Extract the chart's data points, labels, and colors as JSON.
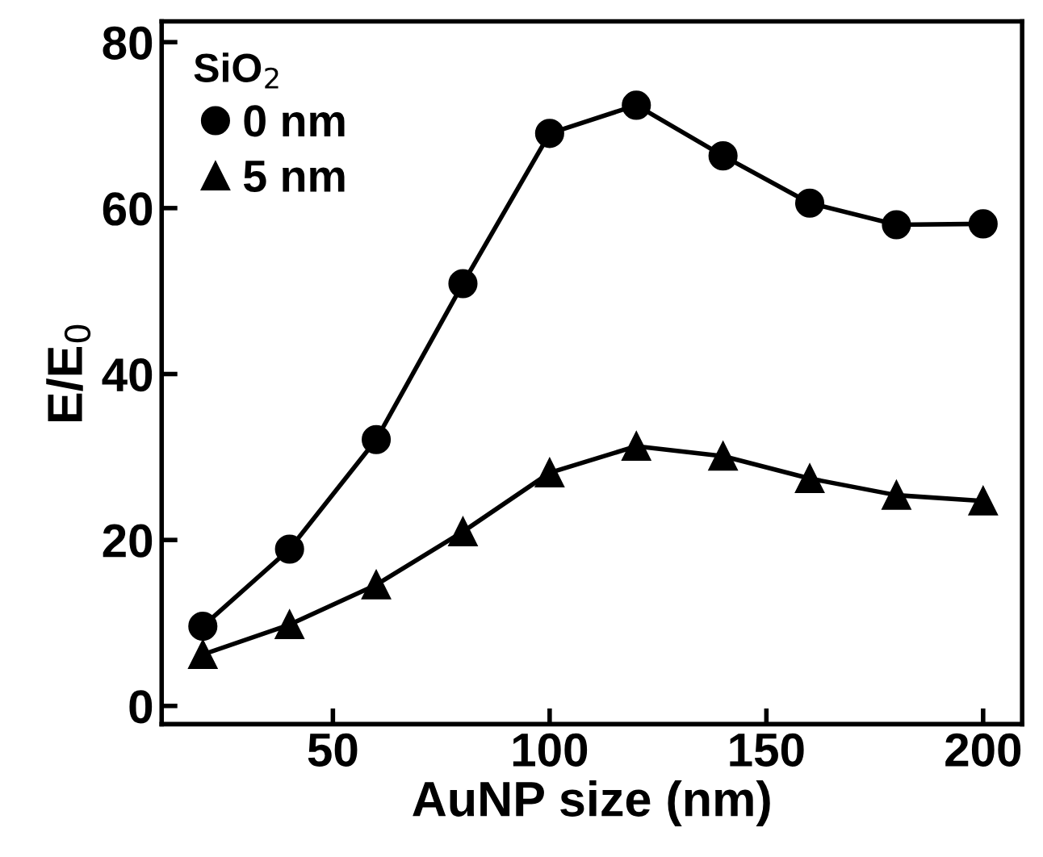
{
  "chart_data": {
    "type": "line",
    "xlabel": "AuNP size (nm)",
    "ylabel": "E/E$_{0}$",
    "legend_title": "SiO$_{2}$",
    "legend": "top left",
    "x": [
      20,
      40,
      60,
      80,
      100,
      120,
      140,
      160,
      180,
      200
    ],
    "series": [
      {
        "name": "0 nm",
        "color": "#000000",
        "marker": "circle",
        "values": [
          9.6,
          18.9,
          32.1,
          50.9,
          69.0,
          72.4,
          66.3,
          60.6,
          58.0,
          58.1
        ]
      },
      {
        "name": "5 nm",
        "color": "#000000",
        "marker": "triangle",
        "values": [
          6.2,
          9.8,
          14.6,
          21.0,
          28.1,
          31.3,
          30.1,
          27.4,
          25.4,
          24.7
        ]
      }
    ],
    "line_style": "solid",
    "xlim": [
      10.5,
      209
    ],
    "ylim": [
      -2.2,
      82.5
    ],
    "xticks": [
      50,
      100,
      150,
      200
    ],
    "yticks": [
      0,
      20,
      40,
      60,
      80
    ],
    "grid": false
  }
}
